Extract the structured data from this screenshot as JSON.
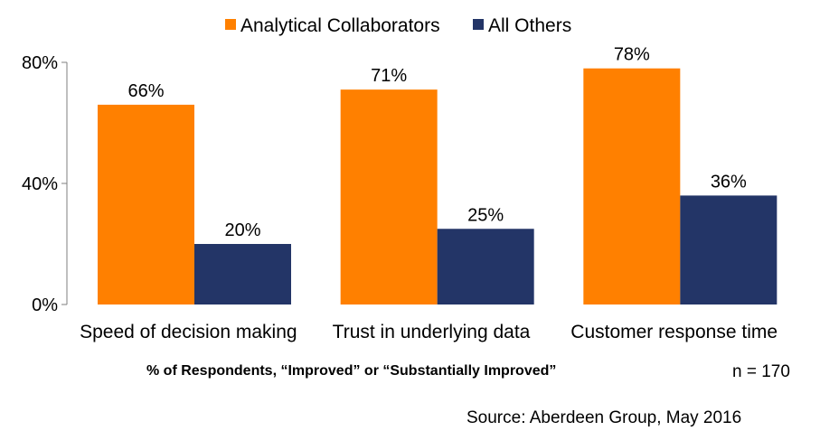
{
  "chart_data": {
    "type": "bar",
    "categories": [
      "Speed of decision making",
      "Trust in underlying data",
      "Customer response time"
    ],
    "series": [
      {
        "name": "Analytical Collaborators",
        "values": [
          66,
          71,
          78
        ],
        "labels": [
          "66%",
          "71%",
          "78%"
        ],
        "color": "#FF8000"
      },
      {
        "name": "All Others",
        "values": [
          20,
          25,
          36
        ],
        "labels": [
          "20%",
          "25%",
          "36%"
        ],
        "color": "#233567"
      }
    ],
    "ylim": [
      0,
      80
    ],
    "yticks": [
      0,
      40,
      80
    ],
    "ytick_labels": [
      "0%",
      "40%",
      "80%"
    ],
    "xlabel": "% of Respondents, “Improved” or “Substantially Improved”",
    "legend_position": "top",
    "grid": false
  },
  "notes": {
    "n": "n = 170",
    "source": "Source: Aberdeen Group, May 2016"
  }
}
